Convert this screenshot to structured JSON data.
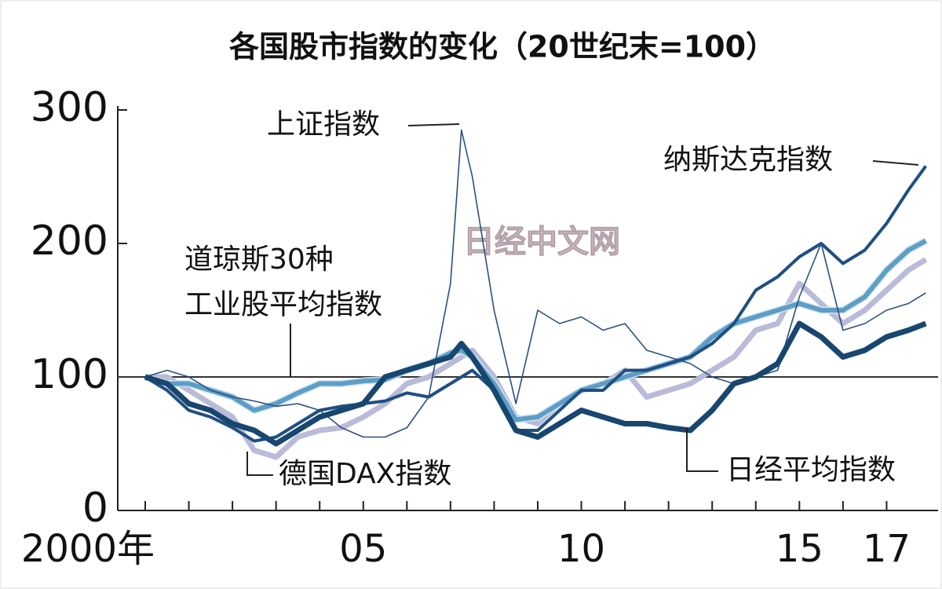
{
  "chart_data": {
    "type": "line",
    "title": "各国股市指数的变化（20世纪末=100）",
    "watermark": "日经中文网",
    "x": [
      2000,
      2000.5,
      2001,
      2001.5,
      2002,
      2002.5,
      2003,
      2003.5,
      2004,
      2004.5,
      2005,
      2005.5,
      2006,
      2006.5,
      2007,
      2007.25,
      2007.5,
      2008,
      2008.5,
      2009,
      2009.5,
      2010,
      2010.5,
      2011,
      2011.5,
      2012,
      2012.5,
      2013,
      2013.5,
      2014,
      2014.5,
      2015,
      2015.5,
      2016,
      2016.5,
      2017,
      2017.5,
      2017.9
    ],
    "xlim": [
      2000,
      2018
    ],
    "xticks": [
      {
        "value": 2000,
        "label": "2000年"
      },
      {
        "value": 2001,
        "label": null
      },
      {
        "value": 2002,
        "label": null
      },
      {
        "value": 2003,
        "label": null
      },
      {
        "value": 2004,
        "label": null
      },
      {
        "value": 2005,
        "label": "05"
      },
      {
        "value": 2006,
        "label": null
      },
      {
        "value": 2007,
        "label": null
      },
      {
        "value": 2008,
        "label": null
      },
      {
        "value": 2009,
        "label": null
      },
      {
        "value": 2010,
        "label": "10"
      },
      {
        "value": 2011,
        "label": null
      },
      {
        "value": 2012,
        "label": null
      },
      {
        "value": 2013,
        "label": null
      },
      {
        "value": 2014,
        "label": null
      },
      {
        "value": 2015,
        "label": "15"
      },
      {
        "value": 2016,
        "label": null
      },
      {
        "value": 2017,
        "label": "17"
      }
    ],
    "ylim": [
      0,
      300
    ],
    "yticks": [
      0,
      100,
      200,
      300
    ],
    "reference_line": 100,
    "series": [
      {
        "name": "德国DAX指数",
        "color": "#b9bbd8",
        "values": [
          100,
          100,
          90,
          80,
          70,
          45,
          40,
          55,
          60,
          62,
          70,
          80,
          95,
          100,
          110,
          115,
          120,
          100,
          70,
          65,
          80,
          90,
          95,
          105,
          85,
          90,
          95,
          105,
          115,
          135,
          140,
          170,
          155,
          140,
          150,
          165,
          180,
          188
        ]
      },
      {
        "name": "道琼斯30种\n工业股平均指数",
        "color": "#5d9ec6",
        "values": [
          100,
          95,
          95,
          90,
          85,
          75,
          80,
          88,
          95,
          95,
          97,
          98,
          105,
          110,
          118,
          120,
          115,
          95,
          68,
          70,
          80,
          90,
          95,
          100,
          105,
          110,
          115,
          130,
          140,
          145,
          150,
          155,
          150,
          150,
          160,
          180,
          195,
          202
        ]
      },
      {
        "name": "上证指数",
        "color": "#2b4f80",
        "values": [
          100,
          105,
          100,
          90,
          85,
          82,
          78,
          80,
          75,
          62,
          55,
          55,
          62,
          85,
          170,
          285,
          250,
          150,
          80,
          150,
          140,
          145,
          135,
          140,
          120,
          115,
          110,
          100,
          95,
          100,
          105,
          160,
          200,
          135,
          140,
          150,
          155,
          163
        ]
      },
      {
        "name": "纳斯达克指数",
        "color": "#1f4f82",
        "values": [
          100,
          90,
          75,
          70,
          62,
          52,
          55,
          65,
          75,
          78,
          80,
          82,
          88,
          85,
          95,
          100,
          105,
          90,
          60,
          60,
          75,
          90,
          90,
          105,
          105,
          110,
          115,
          125,
          140,
          165,
          175,
          190,
          200,
          185,
          195,
          215,
          240,
          258
        ]
      },
      {
        "name": "日经平均指数",
        "color": "#17466f",
        "values": [
          100,
          95,
          80,
          75,
          65,
          60,
          50,
          60,
          70,
          75,
          80,
          100,
          105,
          110,
          115,
          125,
          115,
          90,
          60,
          55,
          65,
          75,
          70,
          65,
          65,
          62,
          60,
          75,
          95,
          100,
          110,
          140,
          130,
          115,
          120,
          130,
          135,
          140
        ]
      }
    ]
  }
}
